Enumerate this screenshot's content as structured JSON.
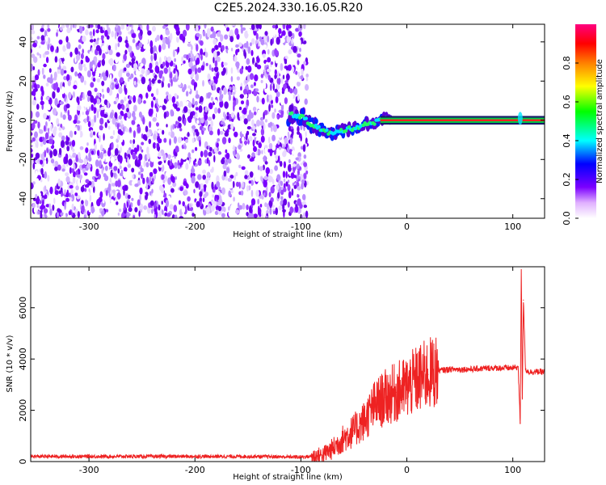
{
  "title": "C2E5.2024.330.16.05.R20",
  "chart_data": [
    {
      "type": "heatmap",
      "panel": "spectrogram",
      "xlabel": "Height of straight line (km)",
      "ylabel": "Frequency (Hz)",
      "xlim": [
        -355,
        130
      ],
      "ylim": [
        -50,
        49
      ],
      "xticks": [
        -300,
        -200,
        -100,
        0,
        100
      ],
      "yticks": [
        -40,
        -20,
        0,
        20,
        40
      ],
      "signal_track": {
        "x": [
          -110,
          -100,
          -90,
          -80,
          -70,
          -60,
          -50,
          -40,
          -30,
          -20,
          -10,
          0,
          10,
          50,
          100,
          106,
          108,
          110,
          130
        ],
        "y": [
          3,
          2,
          -2,
          -5,
          -7,
          -5,
          -4,
          -2,
          -1,
          1,
          1,
          0,
          0,
          0,
          0,
          2,
          -2,
          0,
          0
        ]
      },
      "noise_region_xmax": -100,
      "colorbar": {
        "label": "Normalized spectral amplitude",
        "range": [
          0,
          1
        ],
        "ticks": [
          0.0,
          0.2,
          0.4,
          0.6,
          0.8
        ],
        "colors": [
          "#ffffff",
          "#7b00ff",
          "#0000ff",
          "#00ffff",
          "#00ff00",
          "#ffff00",
          "#ff8000",
          "#ff0000",
          "#ff0080"
        ]
      }
    },
    {
      "type": "line",
      "panel": "snr",
      "xlabel": "Height of straight line (km)",
      "ylabel": "SNR (10 * v/v)",
      "xlim": [
        -355,
        130
      ],
      "ylim": [
        0,
        7600
      ],
      "xticks": [
        -300,
        -200,
        -100,
        0,
        100
      ],
      "yticks": [
        0,
        2000,
        4000,
        6000
      ],
      "color": "#ee2222",
      "series": [
        {
          "x": [
            -355,
            -300,
            -250,
            -200,
            -150,
            -110,
            -100,
            -90,
            -80,
            -70,
            -60,
            -50,
            -40,
            -30,
            -20,
            -10,
            0,
            10,
            20,
            30,
            40,
            60,
            80,
            100,
            105,
            107,
            108,
            109,
            110,
            112,
            115,
            130
          ],
          "y": [
            200,
            200,
            200,
            200,
            200,
            180,
            180,
            200,
            250,
            500,
            900,
            1200,
            1600,
            2200,
            2500,
            2700,
            2900,
            3200,
            3400,
            3550,
            3600,
            3600,
            3650,
            3650,
            3700,
            1500,
            7600,
            2500,
            6300,
            3600,
            3500,
            3500
          ]
        }
      ]
    }
  ]
}
